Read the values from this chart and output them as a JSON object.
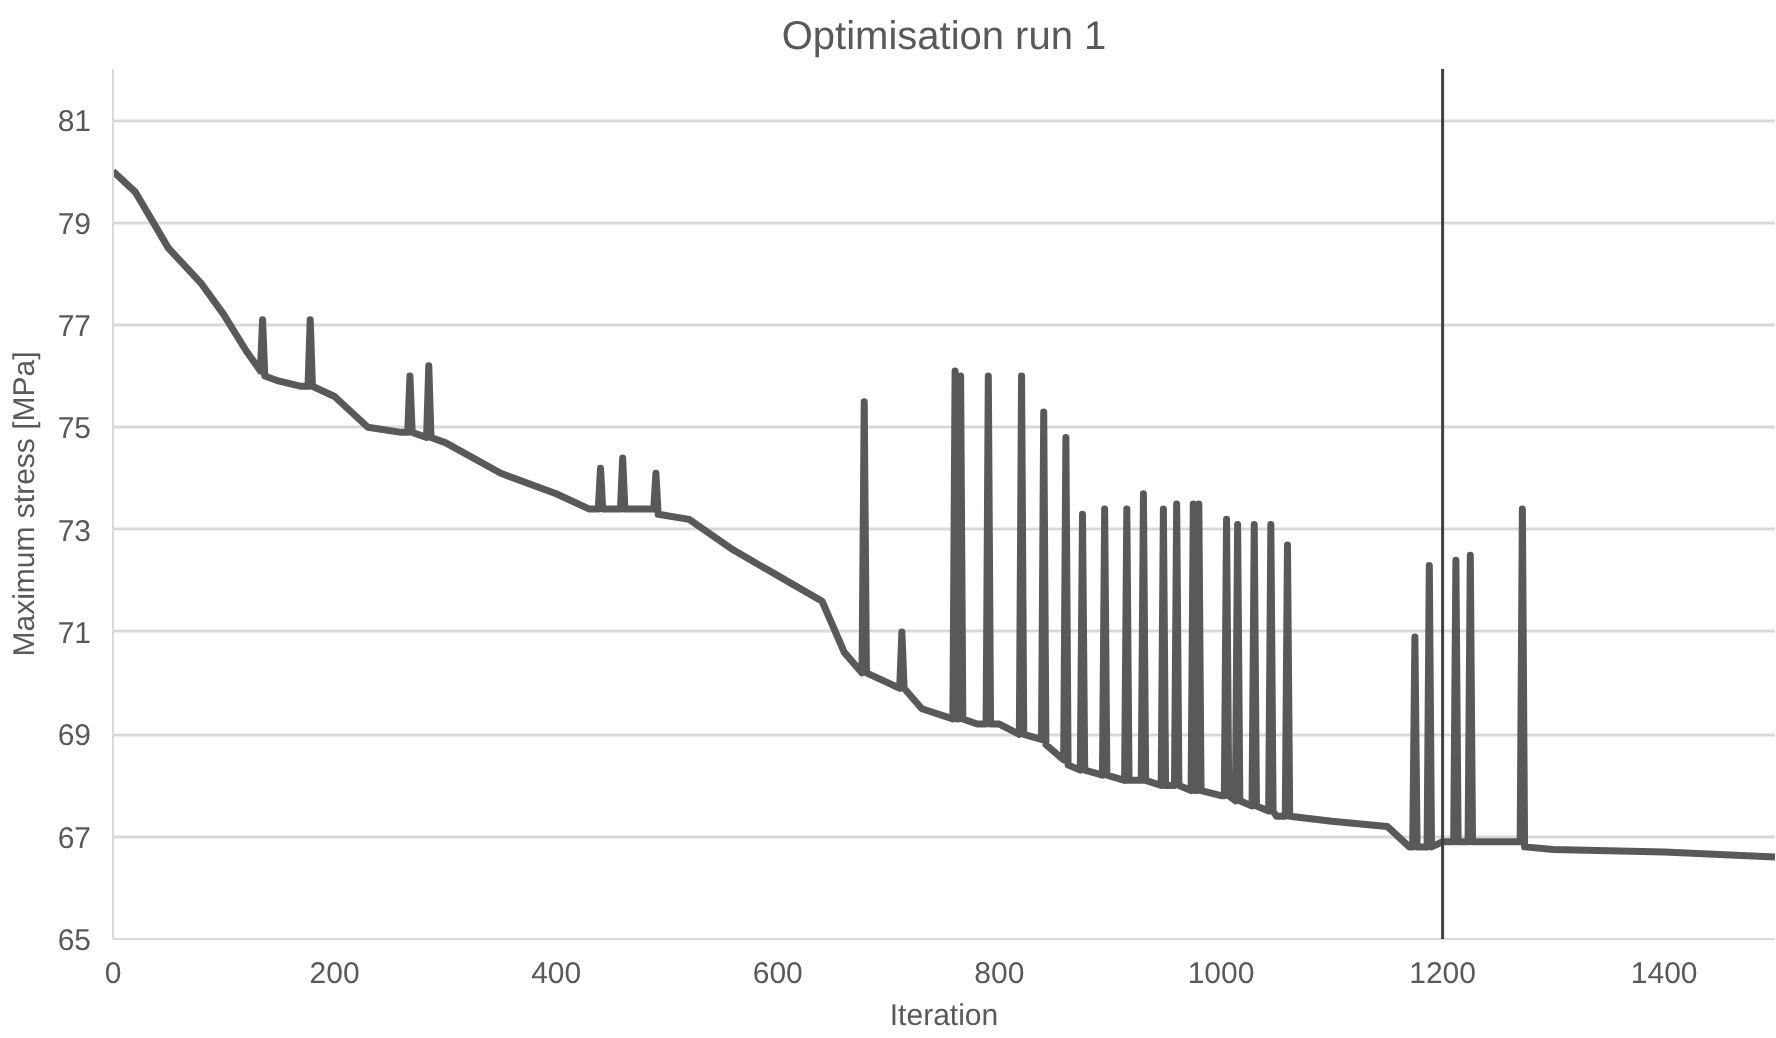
{
  "chart_data": {
    "type": "line",
    "title": "Optimisation run 1",
    "xlabel": "Iteration",
    "ylabel": "Maximum stress [MPa]",
    "x": [
      0,
      20,
      50,
      80,
      100,
      120,
      133,
      135,
      137,
      150,
      170,
      176,
      178,
      180,
      200,
      230,
      260,
      266,
      268,
      270,
      283,
      285,
      287,
      300,
      350,
      400,
      430,
      438,
      440,
      442,
      458,
      460,
      462,
      480,
      488,
      490,
      492,
      520,
      560,
      600,
      640,
      660,
      676,
      678,
      680,
      700,
      710,
      712,
      714,
      730,
      758,
      760,
      762,
      763,
      765,
      767,
      780,
      788,
      790,
      792,
      800,
      818,
      820,
      822,
      838,
      840,
      842,
      858,
      860,
      862,
      873,
      875,
      877,
      893,
      895,
      897,
      913,
      915,
      917,
      928,
      930,
      932,
      946,
      948,
      950,
      958,
      960,
      962,
      973,
      975,
      977,
      978,
      980,
      982,
      1000,
      1003,
      1005,
      1007,
      1013,
      1015,
      1017,
      1028,
      1030,
      1032,
      1043,
      1045,
      1047,
      1050,
      1058,
      1060,
      1062,
      1100,
      1150,
      1170,
      1173,
      1175,
      1177,
      1186,
      1188,
      1190,
      1200,
      1210,
      1212,
      1214,
      1223,
      1225,
      1227,
      1260,
      1270,
      1272,
      1274,
      1300,
      1400,
      1500
    ],
    "series": [
      {
        "color": "#595959",
        "values": [
          80.0,
          79.6,
          78.5,
          77.8,
          77.2,
          76.5,
          76.1,
          77.1,
          76.0,
          75.9,
          75.8,
          75.8,
          77.1,
          75.8,
          75.6,
          75.0,
          74.9,
          74.9,
          76.0,
          74.9,
          74.8,
          76.2,
          74.8,
          74.7,
          74.1,
          73.7,
          73.4,
          73.4,
          74.2,
          73.4,
          73.4,
          74.4,
          73.4,
          73.4,
          73.4,
          74.1,
          73.3,
          73.2,
          72.6,
          72.1,
          71.6,
          70.6,
          70.2,
          75.5,
          70.2,
          70.0,
          69.9,
          71.0,
          69.9,
          69.5,
          69.3,
          76.1,
          69.3,
          69.3,
          76.0,
          69.3,
          69.2,
          69.2,
          76.0,
          69.2,
          69.2,
          69.0,
          76.0,
          69.0,
          68.9,
          75.3,
          68.8,
          68.5,
          74.8,
          68.4,
          68.3,
          73.3,
          68.3,
          68.2,
          73.4,
          68.2,
          68.1,
          73.4,
          68.1,
          68.1,
          73.7,
          68.1,
          68.0,
          73.4,
          68.0,
          68.0,
          73.5,
          68.0,
          67.9,
          73.5,
          67.9,
          67.9,
          73.5,
          67.9,
          67.8,
          67.8,
          73.2,
          67.8,
          67.7,
          73.1,
          67.7,
          67.6,
          73.1,
          67.6,
          67.5,
          73.1,
          67.5,
          67.4,
          67.4,
          72.7,
          67.4,
          67.3,
          67.2,
          66.8,
          66.8,
          70.9,
          66.8,
          66.8,
          72.3,
          66.8,
          66.9,
          66.9,
          72.4,
          66.9,
          66.9,
          72.5,
          66.9,
          66.9,
          66.9,
          73.4,
          66.8,
          66.75,
          66.7,
          66.6
        ]
      }
    ],
    "xlim": [
      0,
      1500
    ],
    "ylim": [
      65,
      82
    ],
    "xticks": [
      0,
      200,
      400,
      600,
      800,
      1000,
      1200,
      1400
    ],
    "yticks": [
      65,
      67,
      69,
      71,
      73,
      75,
      77,
      79,
      81
    ],
    "grid": "y",
    "ref_lines": [
      {
        "axis": "x",
        "value": 1200,
        "color": "#404040"
      }
    ]
  }
}
